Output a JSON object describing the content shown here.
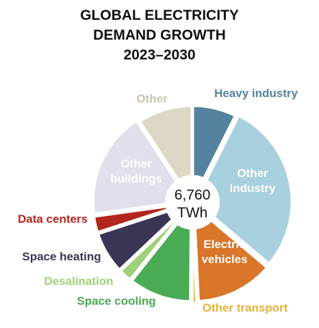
{
  "chart_data": {
    "type": "pie",
    "title": [
      "GLOBAL ELECTRICITY",
      "DEMAND GROWTH",
      "2023–2030"
    ],
    "center_label": [
      "6,760",
      "TWh"
    ],
    "slices": [
      {
        "name": "Heavy industry",
        "value": 6.8,
        "color": "#55829f",
        "label_color": "#55829f",
        "label_lines": [
          "Heavy industry"
        ]
      },
      {
        "name": "Other industry",
        "value": 26.5,
        "color": "#a8d0de",
        "label_color": "#ffffff",
        "label_lines": [
          "Other",
          "industry"
        ]
      },
      {
        "name": "Electric vehicles",
        "value": 12.0,
        "color": "#d9762a",
        "label_color": "#ffffff",
        "label_lines": [
          "Electric",
          "vehicles"
        ]
      },
      {
        "name": "Other transport",
        "value": 0.8,
        "color": "#eebd3d",
        "label_color": "#e2b43a",
        "label_lines": [
          "Other transport"
        ]
      },
      {
        "name": "Space cooling",
        "value": 9.7,
        "color": "#4aab55",
        "label_color": "#4aab55",
        "label_lines": [
          "Space cooling"
        ]
      },
      {
        "name": "Desalination",
        "value": 2.1,
        "color": "#9fd17a",
        "label_color": "#9fd17a",
        "label_lines": [
          "Desalination"
        ]
      },
      {
        "name": "Space heating",
        "value": 6.5,
        "color": "#3b3555",
        "label_color": "#3b3555",
        "label_lines": [
          "Space heating"
        ]
      },
      {
        "name": "Data centers",
        "value": 2.6,
        "color": "#b3261e",
        "label_color": "#b3261e",
        "label_lines": [
          "Data centers"
        ]
      },
      {
        "name": "Other buildings",
        "value": 16.5,
        "color": "#e2dfec",
        "label_color": "#ffffff",
        "label_lines": [
          "Other",
          "buildings"
        ]
      },
      {
        "name": "Other",
        "value": 8.5,
        "color": "#dcd8c5",
        "label_color": "#c9c4ad",
        "label_lines": [
          "Other"
        ]
      }
    ]
  }
}
